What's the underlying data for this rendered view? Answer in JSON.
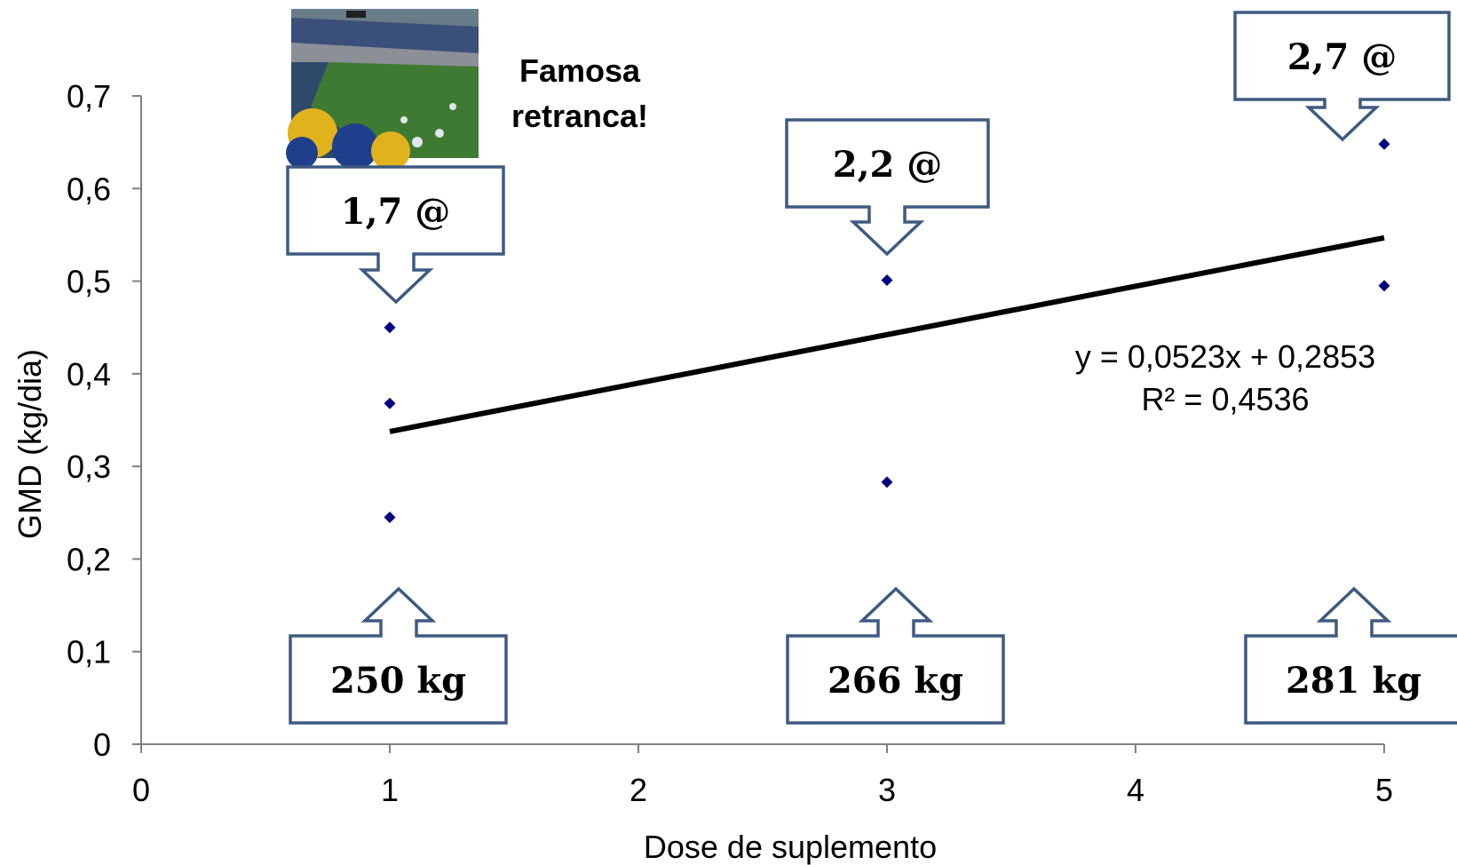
{
  "chart_data": {
    "type": "scatter",
    "xlabel": "Dose de suplemento",
    "ylabel": "GMD (kg/dia)",
    "xlim": [
      0,
      5
    ],
    "ylim": [
      0,
      0.7
    ],
    "x_ticks": [
      "0",
      "1",
      "2",
      "3",
      "4",
      "5"
    ],
    "y_ticks": [
      "0",
      "0,1",
      "0,2",
      "0,3",
      "0,4",
      "0,5",
      "0,6",
      "0,7"
    ],
    "grid": false,
    "marker_color": "#000080",
    "points": [
      {
        "x": 1,
        "y": 0.45
      },
      {
        "x": 1,
        "y": 0.368
      },
      {
        "x": 1,
        "y": 0.245
      },
      {
        "x": 3,
        "y": 0.501
      },
      {
        "x": 3,
        "y": 0.283
      },
      {
        "x": 5,
        "y": 0.648
      },
      {
        "x": 5,
        "y": 0.495
      }
    ],
    "trendline": {
      "slope": 0.0523,
      "intercept": 0.2853,
      "x_range": [
        1,
        5
      ],
      "color": "#000000",
      "equation_label": "y = 0,0523x + 0,2853",
      "r2_label": "R² = 0,4536"
    },
    "annotations": {
      "top_callouts": [
        "1,7 @",
        "2,2 @",
        "2,7 @"
      ],
      "bottom_callouts": [
        "250 kg",
        "266 kg",
        "281 kg"
      ],
      "note": [
        "Famosa",
        "retranca!"
      ],
      "photo": "stadium-crowd-photo",
      "callout_border_color": "#3e5a80"
    }
  }
}
